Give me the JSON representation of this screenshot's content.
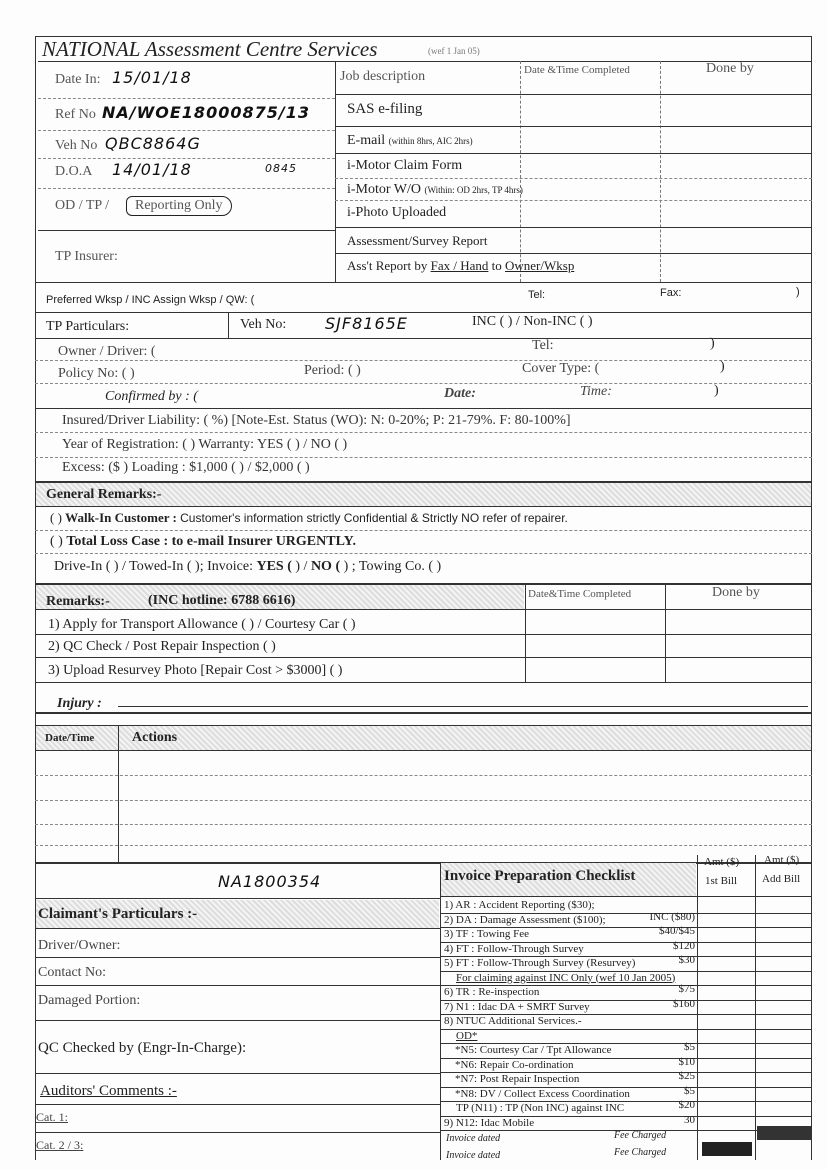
{
  "header": {
    "title": "NATIONAL Assessment Centre Services",
    "wef_note": "(wef 1 Jan 05)"
  },
  "vehicle_info": {
    "date_in_label": "Date In:",
    "date_in": "15/01/18",
    "ref_no_label": "Ref No",
    "ref_no": "NA/WOE18000875/13",
    "veh_no_label": "Veh No",
    "veh_no": "QBC8864G",
    "doa_label": "D.O.A",
    "doa": "14/01/18",
    "doa_time": "0845",
    "od_tp_label": "OD / TP /",
    "reporting_only": "Reporting Only",
    "tp_insurer_label": "TP Insurer:"
  },
  "jobs": {
    "headers": [
      "Job description",
      "Date &Time Completed",
      "Done by"
    ],
    "items": [
      {
        "label": "SAS e-filing",
        "note": ""
      },
      {
        "label": "E-mail",
        "note": "(within 8hrs, AIC 2hrs)"
      },
      {
        "label": "i-Motor Claim Form",
        "note": ""
      },
      {
        "label": "i-Motor W/O",
        "note": "(Within: OD 2hrs, TP 4hrs)"
      },
      {
        "label": "i-Photo Uploaded",
        "note": ""
      },
      {
        "label": "Assessment/Survey Report",
        "note": ""
      }
    ],
    "report_prefix": "Ass't Report by",
    "report_fax_hand": "Fax / Hand",
    "report_to": "to",
    "report_owner": "Owner/Wksp"
  },
  "preferred": {
    "label": "Preferred Wksp / INC Assign Wksp / QW: (",
    "tel": "Tel:",
    "fax": "Fax:",
    "close": ")"
  },
  "tp": {
    "label": "TP Particulars:",
    "veh_no_label": "Veh No:",
    "veh_no": "SJF8165E",
    "inc": "INC (      ) / Non-INC (      )",
    "owner": "Owner / Driver: (",
    "owner_tel": "Tel:",
    "close": ")",
    "policy": "Policy No: (                                )",
    "period": "Period: (                                      )",
    "cover": "Cover Type: (",
    "confirmed": "Confirmed by : (",
    "date": "Date:",
    "time": "Time:",
    "liability": "Insured/Driver Liability:  (                %) [Note-Est. Status (WO):   N: 0-20%;   P: 21-79%.   F: 80-100%]",
    "year": "Year of Registration: (                             )   Warranty: YES (      ) / NO (      )",
    "excess": "Excess: ($                         )    Loading : $1,000 (      ) / $2,000 (      )"
  },
  "general": {
    "label": "General Remarks:-",
    "walkin_prefix": "(        )",
    "walkin_bold": "Walk-In Customer :",
    "walkin_text": "Customer's information strictly Confidential & Strictly NO refer of repairer.",
    "total_prefix": "(        )",
    "total_bold": "Total Loss Case",
    "total_text": "  : to e-mail Insurer URGENTLY.",
    "drive": "Drive-In (        ) / Towed-In (        ); Invoice:",
    "yes": "YES (",
    "mid": "      )  /",
    "no": "NO (",
    "towing": "      ) ; Towing Co. (                                                                )"
  },
  "remarks": {
    "label": "Remarks:-",
    "hotline": "(INC hotline: 6788 6616)",
    "headers": [
      "Date&Time Completed",
      "Done by"
    ],
    "items": [
      "1) Apply for Transport Allowance (        ) / Courtesy Car (      )",
      "2) QC Check / Post Repair Inspection                        (      )",
      "3) Upload Resurvey Photo [Repair Cost > $3000]          (      )"
    ],
    "injury": "Injury :"
  },
  "actions": {
    "headers": [
      "Date/Time",
      "Actions"
    ]
  },
  "claimant": {
    "handwritten_ref": "NA1800354",
    "label": "Claimant's Particulars :-",
    "driver": "Driver/Owner:",
    "contact": "Contact No:",
    "damaged": "Damaged Portion:",
    "qc": "QC Checked by (Engr-In-Charge):",
    "auditors": "Auditors' Comments :-",
    "cat1": "Cat. 1:",
    "cat23": "Cat. 2 / 3:"
  },
  "checklist": {
    "title": "Invoice Preparation Checklist",
    "col1": [
      "Amt ($)",
      "1st Bill"
    ],
    "col2": [
      "Amt ($)",
      "Add Bill"
    ],
    "items": [
      {
        "label": "1) AR : Accident Reporting    ($30);",
        "amt": ""
      },
      {
        "label": "2) DA : Damage Assessment  ($100);",
        "amt": "INC ($80)"
      },
      {
        "label": "3) TF : Towing Fee",
        "amt": "$40/$45"
      },
      {
        "label": "4) FT : Follow-Through Survey",
        "amt": "$120"
      },
      {
        "label": "5) FT : Follow-Through Survey (Resurvey)",
        "amt": "$30"
      },
      {
        "label": "For claiming against INC Only  (wef 10 Jan 2005)",
        "amt": ""
      },
      {
        "label": "6) TR : Re-inspection",
        "amt": "$75"
      },
      {
        "label": "7) N1 : Idac DA + SMRT Survey",
        "amt": "$160"
      },
      {
        "label": "8) NTUC Additional Services.-",
        "amt": ""
      },
      {
        "label": "OD*",
        "amt": ""
      },
      {
        "label": "*N5: Courtesy Car / Tpt Allowance",
        "amt": "$5"
      },
      {
        "label": "*N6: Repair Co-ordination",
        "amt": "$10"
      },
      {
        "label": "*N7: Post Repair Inspection",
        "amt": "$25"
      },
      {
        "label": "*N8: DV / Collect Excess Coordination",
        "amt": "$5"
      },
      {
        "label": "TP (N11) : TP (Non INC) against INC",
        "amt": "$20"
      },
      {
        "label": "9) N12: Idac Mobile",
        "amt": "30"
      }
    ],
    "invoice_dated": "Invoice dated",
    "fee_charged": "Fee Charged"
  }
}
